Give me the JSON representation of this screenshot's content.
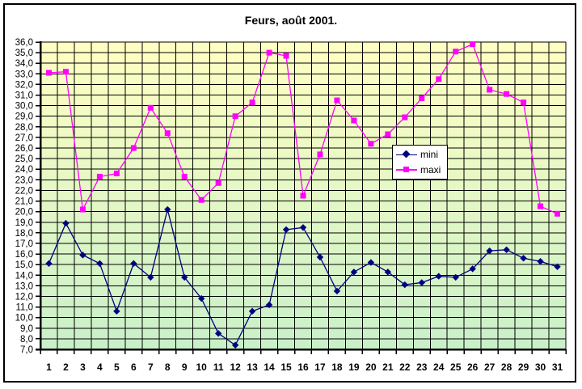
{
  "window": {
    "background_color": "#FFFFFF",
    "border_color": "#000000"
  },
  "header": {
    "title": "Feurs, août 2001."
  },
  "legend": {
    "position": "center-right-inside",
    "items": [
      {
        "label": "mini",
        "color": "#000080",
        "marker": "diamond"
      },
      {
        "label": "maxi",
        "color": "#FF00FF",
        "marker": "square"
      }
    ]
  },
  "chart_data": {
    "type": "line",
    "title": "Feurs, août 2001.",
    "xlabel": "",
    "ylabel": "",
    "x": [
      1,
      2,
      3,
      4,
      5,
      6,
      7,
      8,
      9,
      10,
      11,
      12,
      13,
      14,
      15,
      16,
      17,
      18,
      19,
      20,
      21,
      22,
      23,
      24,
      25,
      26,
      27,
      28,
      29,
      30,
      31
    ],
    "ylim": [
      7.0,
      36.0
    ],
    "ytick_step": 1.0,
    "ytick_label_example": "36,0",
    "ytick_decimal_separator": ",",
    "grid": true,
    "gridline_color": "#000000",
    "plot_background_gradient": {
      "top": "#FFFFC2",
      "bottom": "#C9F0C9"
    },
    "axis_color": "#000000",
    "series": [
      {
        "name": "mini",
        "color": "#000080",
        "marker": "diamond",
        "values": [
          15.1,
          18.9,
          15.9,
          15.1,
          10.6,
          15.1,
          13.8,
          20.2,
          13.8,
          11.8,
          8.5,
          7.4,
          10.6,
          11.2,
          18.3,
          18.5,
          15.7,
          12.5,
          14.3,
          15.2,
          14.3,
          13.1,
          13.3,
          13.9,
          13.8,
          14.6,
          16.3,
          16.4,
          15.6,
          15.3,
          14.8
        ]
      },
      {
        "name": "maxi",
        "color": "#FF00FF",
        "marker": "square",
        "values": [
          33.1,
          33.2,
          20.2,
          23.3,
          23.6,
          26.0,
          29.8,
          27.4,
          23.3,
          21.1,
          22.7,
          29.0,
          30.3,
          35.0,
          34.7,
          21.5,
          25.4,
          30.5,
          28.6,
          26.4,
          27.3,
          28.9,
          30.7,
          32.5,
          35.1,
          35.8,
          31.5,
          31.1,
          30.3,
          20.5,
          19.8
        ]
      }
    ]
  }
}
